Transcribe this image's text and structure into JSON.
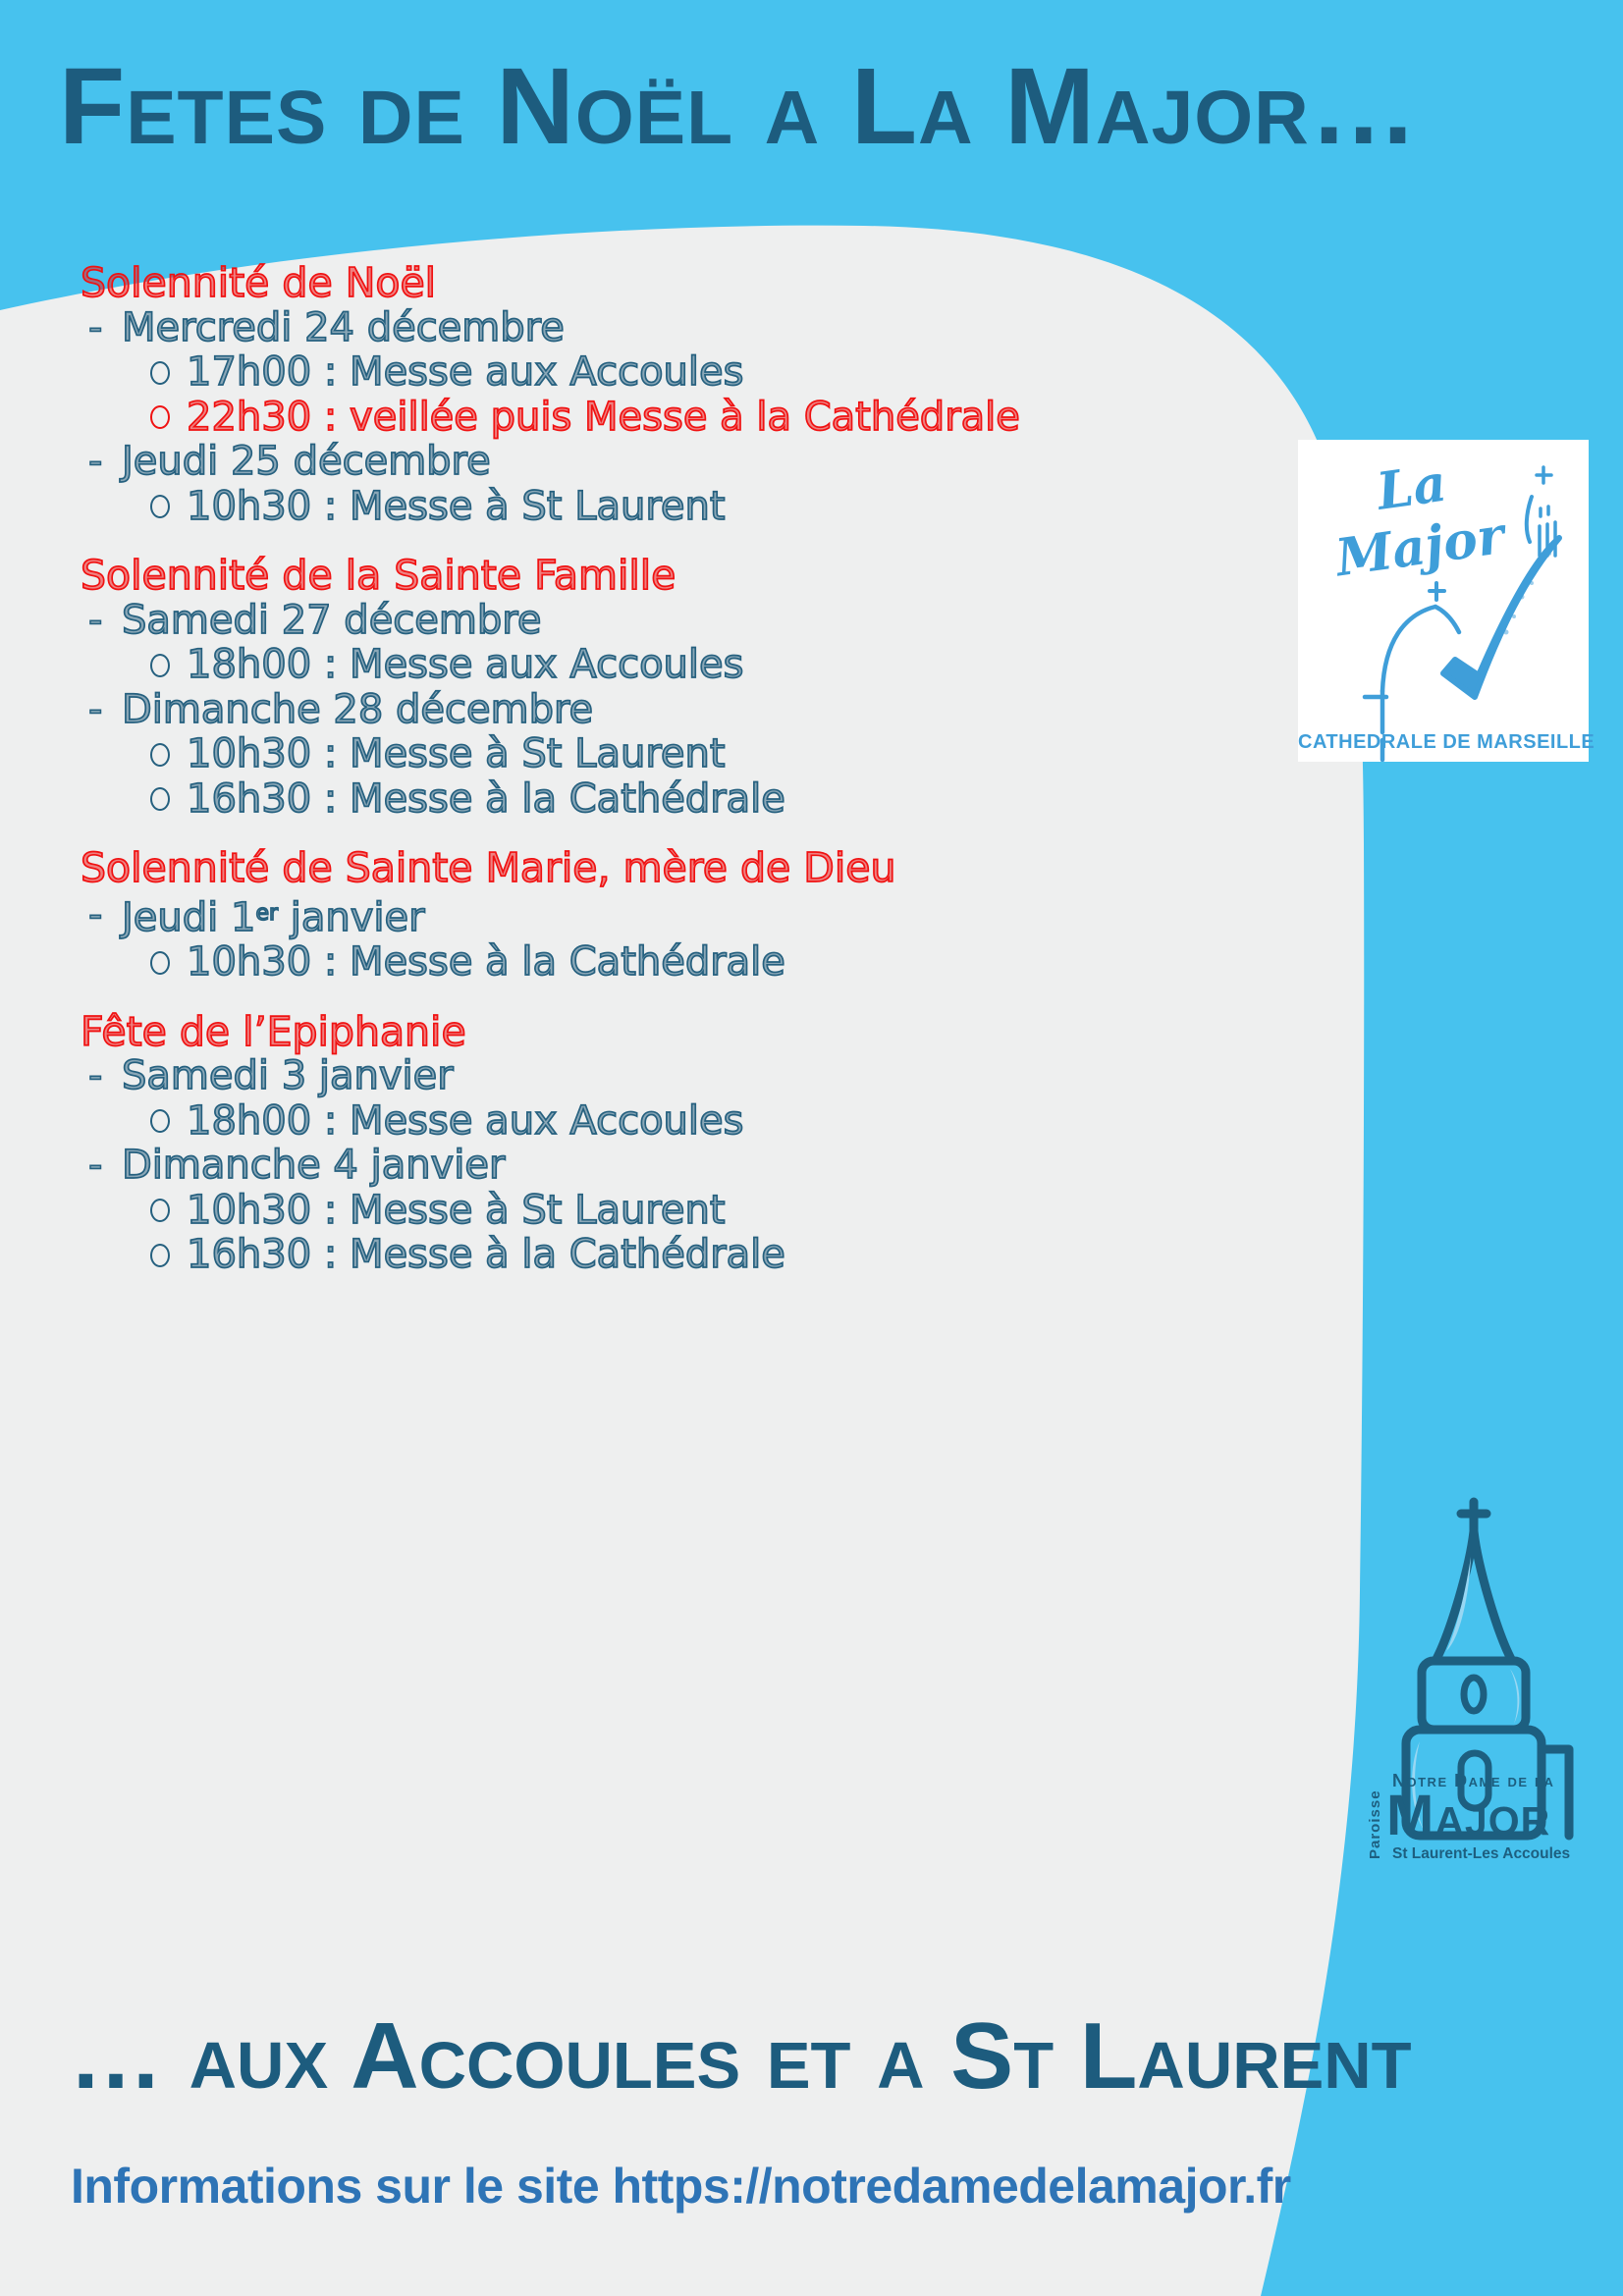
{
  "page": {
    "title": "Fetes de Noël a La Major…",
    "footer_title": "… aux Accoules et a St Laurent",
    "footer_info": "Informations sur le site https://notredamedelamajor.fr"
  },
  "logo_top": {
    "script_text": "La Major",
    "caption": "CATHEDRALE DE MARSEILLE"
  },
  "logo_bottom": {
    "vertical": "Paroisse",
    "line1": "Notre Dame de la",
    "line2": "Major",
    "line3": "St Laurent-Les Accoules"
  },
  "sections": [
    {
      "title": "Solennité de Noël",
      "items": [
        {
          "bullet": "dash",
          "color": "blue",
          "runs": [
            {
              "t": "Mercredi 24 décembre"
            }
          ]
        },
        {
          "bullet": "circle",
          "color": "blue",
          "runs": [
            {
              "t": "17h00 : Messe aux Accoules"
            }
          ]
        },
        {
          "bullet": "circle",
          "color": "red",
          "runs": [
            {
              "t": "22h30 : veillée puis Messe à la Cathédrale"
            }
          ]
        },
        {
          "bullet": "dash",
          "color": "blue",
          "runs": [
            {
              "t": "Jeudi 25 décembre"
            }
          ]
        },
        {
          "bullet": "circle",
          "color": "blue",
          "runs": [
            {
              "t": "10h30 : Messe à St Laurent"
            }
          ]
        }
      ]
    },
    {
      "title": "Solennité de la Sainte Famille",
      "items": [
        {
          "bullet": "dash",
          "color": "blue",
          "runs": [
            {
              "t": "Samedi 27 décembre"
            }
          ]
        },
        {
          "bullet": "circle",
          "color": "blue",
          "runs": [
            {
              "t": "18h00 : Messe aux Accoules"
            }
          ]
        },
        {
          "bullet": "dash",
          "color": "blue",
          "runs": [
            {
              "t": "Dimanche 28 décembre"
            }
          ]
        },
        {
          "bullet": "circle",
          "color": "blue",
          "runs": [
            {
              "t": "10h30 : Messe à St Laurent"
            }
          ]
        },
        {
          "bullet": "circle",
          "color": "blue",
          "runs": [
            {
              "t": "16h30 : Messe à la Cathédrale"
            }
          ]
        }
      ]
    },
    {
      "title": "Solennité de Sainte Marie, mère de Dieu",
      "items": [
        {
          "bullet": "dash",
          "color": "blue",
          "runs": [
            {
              "t": "Jeudi 1"
            },
            {
              "t": "er",
              "sup": true
            },
            {
              "t": " janvier"
            }
          ]
        },
        {
          "bullet": "circle",
          "color": "blue",
          "runs": [
            {
              "t": "10h30 : Messe à la Cathédrale"
            }
          ]
        }
      ]
    },
    {
      "title": "Fête de l’Epiphanie",
      "items": [
        {
          "bullet": "dash",
          "color": "blue",
          "runs": [
            {
              "t": "Samedi 3 janvier"
            }
          ]
        },
        {
          "bullet": "circle",
          "color": "blue",
          "runs": [
            {
              "t": "18h00 : Messe aux Accoules"
            }
          ]
        },
        {
          "bullet": "dash",
          "color": "blue",
          "runs": [
            {
              "t": "Dimanche 4 janvier"
            }
          ]
        },
        {
          "bullet": "circle",
          "color": "blue",
          "runs": [
            {
              "t": "10h30 : Messe à St Laurent"
            }
          ]
        },
        {
          "bullet": "circle",
          "color": "blue",
          "runs": [
            {
              "t": "16h30 : Messe à la Cathédrale"
            }
          ]
        }
      ]
    }
  ],
  "colors": {
    "background_blue": "#47C2EE",
    "panel_gray": "#EEEFEF",
    "dark_teal": "#1D5C7E",
    "body_blue": "#25607F",
    "accent_red": "#F01111",
    "url_blue": "#2E74B6",
    "logo_blue": "#3F9ED9",
    "church_teal": "#1D5F80",
    "church_highlight": "#98D7F3"
  }
}
